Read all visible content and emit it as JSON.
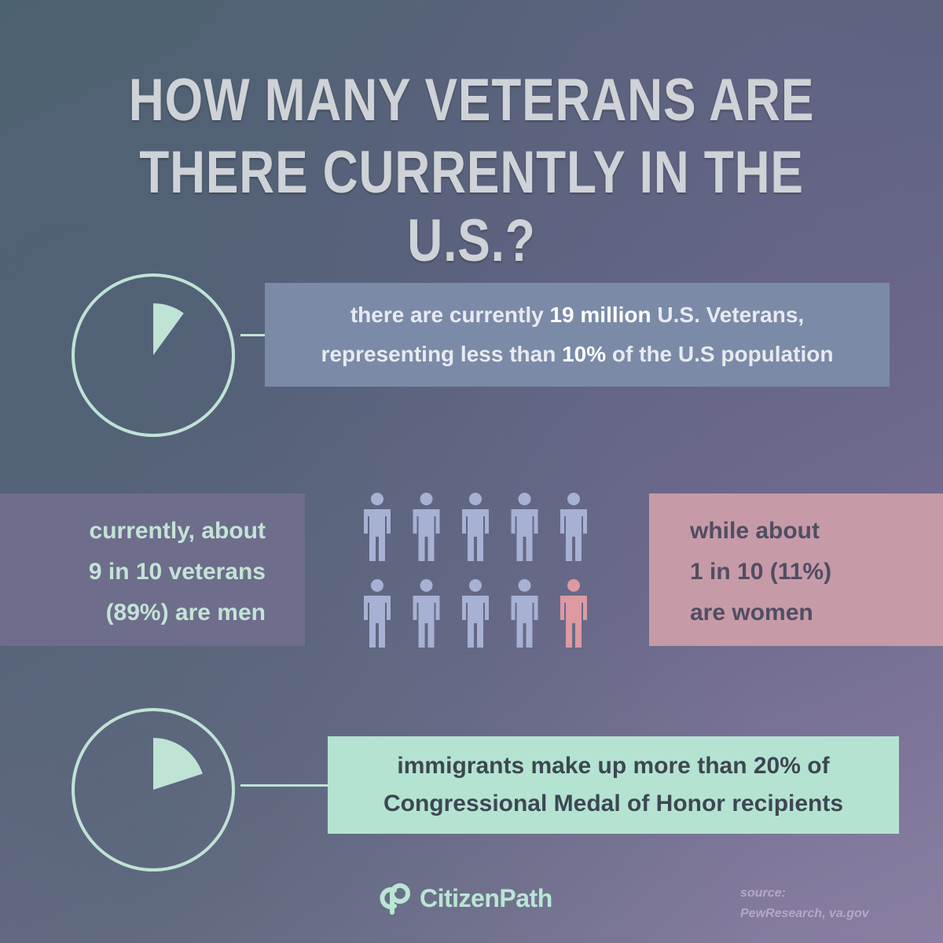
{
  "title": {
    "line1": "HOW MANY VETERANS ARE",
    "line2": "THERE CURRENTLY IN THE U.S.?"
  },
  "stat1": {
    "percent": 10,
    "line1_pre": "there are currently ",
    "line1_bold": "19 million",
    "line1_post": " U.S. Veterans,",
    "line2_pre": "representing less than ",
    "line2_bold": "10%",
    "line2_post": " of the U.S population"
  },
  "men": {
    "line1": "currently, about",
    "line2": "9 in 10 veterans",
    "line3": "(89%) are men",
    "count": 9
  },
  "women": {
    "line1": "while about",
    "line2": "1 in 10 (11%)",
    "line3": "are women",
    "count": 1
  },
  "stat2": {
    "percent": 20,
    "line1_pre": "immigrants make up more than ",
    "line1_bold": "20%",
    "line1_post": " of",
    "line2": "Congressional Medal of Honor recipients"
  },
  "logo": {
    "text": "CitizenPath",
    "icon": "citizenpath-logo-icon"
  },
  "source": {
    "label": "source:",
    "value": "PewResearch, va.gov"
  },
  "colors": {
    "pie_fill": "#bfe3d5",
    "men_icon": "#a7b1d3",
    "women_icon": "#dc9aa3",
    "men_box": "#6e6d8c",
    "women_box": "#c79aa8",
    "stat1_box": "#7b8aa7",
    "stat2_box": "#b5e3d2"
  }
}
